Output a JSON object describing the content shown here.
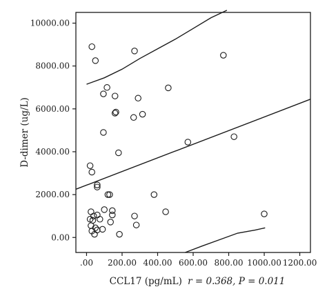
{
  "chart_data": {
    "type": "scatter",
    "title": "",
    "xlabel": "CCL17 (pg/mL)",
    "ylabel": "D-dimer (ug/L)",
    "stats_label": "r = 0.368, P = 0.011",
    "xlim": [
      -60,
      1260
    ],
    "ylim": [
      -700,
      10500
    ],
    "x_ticks": [
      0,
      200,
      400,
      600,
      800,
      1000,
      1200
    ],
    "x_tick_labels": [
      ".00",
      "200.00",
      "400.00",
      "600.00",
      "800.00",
      "1000.00",
      "1200.00"
    ],
    "y_ticks": [
      0,
      2000,
      4000,
      6000,
      8000,
      10000
    ],
    "y_tick_labels": [
      "0.00",
      "2000.00",
      "4000.00",
      "6000.00",
      "8000.00",
      "10000.00"
    ],
    "grid": false,
    "legend": false,
    "points": [
      {
        "x": 30,
        "y": 8900
      },
      {
        "x": 270,
        "y": 8700
      },
      {
        "x": 50,
        "y": 8250
      },
      {
        "x": 770,
        "y": 8500
      },
      {
        "x": 115,
        "y": 7000
      },
      {
        "x": 460,
        "y": 6980
      },
      {
        "x": 95,
        "y": 6700
      },
      {
        "x": 160,
        "y": 6600
      },
      {
        "x": 290,
        "y": 6500
      },
      {
        "x": 165,
        "y": 5850
      },
      {
        "x": 160,
        "y": 5800
      },
      {
        "x": 315,
        "y": 5750
      },
      {
        "x": 265,
        "y": 5600
      },
      {
        "x": 95,
        "y": 4900
      },
      {
        "x": 180,
        "y": 3950
      },
      {
        "x": 570,
        "y": 4450
      },
      {
        "x": 830,
        "y": 4700
      },
      {
        "x": 20,
        "y": 3350
      },
      {
        "x": 30,
        "y": 3050
      },
      {
        "x": 60,
        "y": 2450
      },
      {
        "x": 60,
        "y": 2350
      },
      {
        "x": 120,
        "y": 2000
      },
      {
        "x": 130,
        "y": 2000
      },
      {
        "x": 380,
        "y": 2000
      },
      {
        "x": 25,
        "y": 1200
      },
      {
        "x": 40,
        "y": 1000
      },
      {
        "x": 60,
        "y": 1050
      },
      {
        "x": 100,
        "y": 1300
      },
      {
        "x": 145,
        "y": 1250
      },
      {
        "x": 145,
        "y": 1050
      },
      {
        "x": 270,
        "y": 1000
      },
      {
        "x": 445,
        "y": 1200
      },
      {
        "x": 1000,
        "y": 1100
      },
      {
        "x": 20,
        "y": 850
      },
      {
        "x": 35,
        "y": 800
      },
      {
        "x": 75,
        "y": 850
      },
      {
        "x": 135,
        "y": 720
      },
      {
        "x": 280,
        "y": 580
      },
      {
        "x": 25,
        "y": 550
      },
      {
        "x": 50,
        "y": 450
      },
      {
        "x": 60,
        "y": 350
      },
      {
        "x": 30,
        "y": 300
      },
      {
        "x": 90,
        "y": 380
      },
      {
        "x": 45,
        "y": 150
      },
      {
        "x": 185,
        "y": 150
      }
    ],
    "regression_line": {
      "x": [
        -60,
        1260
      ],
      "y": [
        2250,
        6450
      ]
    },
    "ci_upper": {
      "x": [
        0,
        100,
        200,
        300,
        400,
        500,
        600,
        700,
        790
      ],
      "y": [
        7150,
        7450,
        7850,
        8350,
        8800,
        9250,
        9750,
        10250,
        10600
      ]
    },
    "ci_lower": {
      "x": [
        555,
        650,
        750,
        850,
        950,
        1005
      ],
      "y": [
        -700,
        -400,
        -100,
        200,
        350,
        450
      ]
    }
  }
}
